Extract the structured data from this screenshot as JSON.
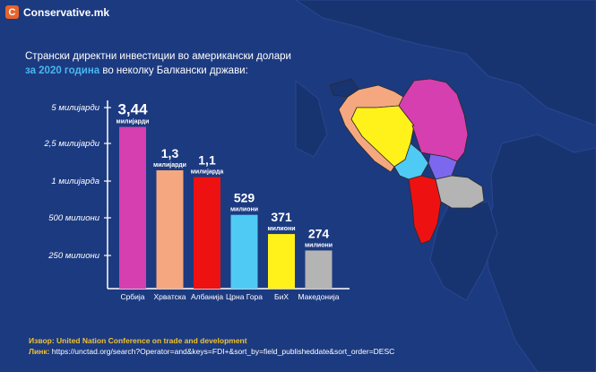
{
  "brand": {
    "logo_letter": "C",
    "name": "Conservative.mk",
    "accent": "#e8632b"
  },
  "title": {
    "line1": "Странски директни инвестиции во американски долари",
    "line2_highlight": "за 2020 година",
    "line2_rest": " во неколку Балкански држави:"
  },
  "chart_data": {
    "type": "bar",
    "categories": [
      "Србија",
      "Хрватска",
      "Албанија",
      "Црна Гора",
      "БиХ",
      "Македонија"
    ],
    "values": [
      3440000000,
      1300000000,
      1100000000,
      529000000,
      371000000,
      274000000
    ],
    "value_labels": [
      {
        "big": "3,44",
        "small": "милијарди"
      },
      {
        "big": "1,3",
        "small": "милијарди"
      },
      {
        "big": "1,1",
        "small": "милијарда"
      },
      {
        "big": "529",
        "small": "милиони"
      },
      {
        "big": "371",
        "small": "милиони"
      },
      {
        "big": "274",
        "small": "милиони"
      }
    ],
    "colors": [
      "#d63fb0",
      "#f5a880",
      "#ee1111",
      "#4fcaf5",
      "#fff21a",
      "#b4b4b4"
    ],
    "y_ticks": [
      {
        "label": "5 милијарди",
        "value": 5000000000
      },
      {
        "label": "2,5 милијарди",
        "value": 2500000000
      },
      {
        "label": "1 милијарда",
        "value": 1000000000
      },
      {
        "label": "500 милиони",
        "value": 500000000
      },
      {
        "label": "250 милиони",
        "value": 250000000
      }
    ],
    "y_scale": "non-linear (log-like)",
    "legend": "none",
    "grid": false
  },
  "map": {
    "region_colors": {
      "serbia": "#d63fb0",
      "croatia": "#f5a880",
      "albania": "#ee1111",
      "montenegro": "#4fcaf5",
      "bih": "#fff21a",
      "north_macedonia": "#b4b4b4",
      "kosovo": "#7b68ee"
    }
  },
  "source": {
    "label": "Извор:",
    "value": "United Nation Conference on trade and development",
    "link_label": "Линк:",
    "link": "https://unctad.org/search?Operator=and&keys=FDI+&sort_by=field_publisheddate&sort_order=DESC"
  }
}
